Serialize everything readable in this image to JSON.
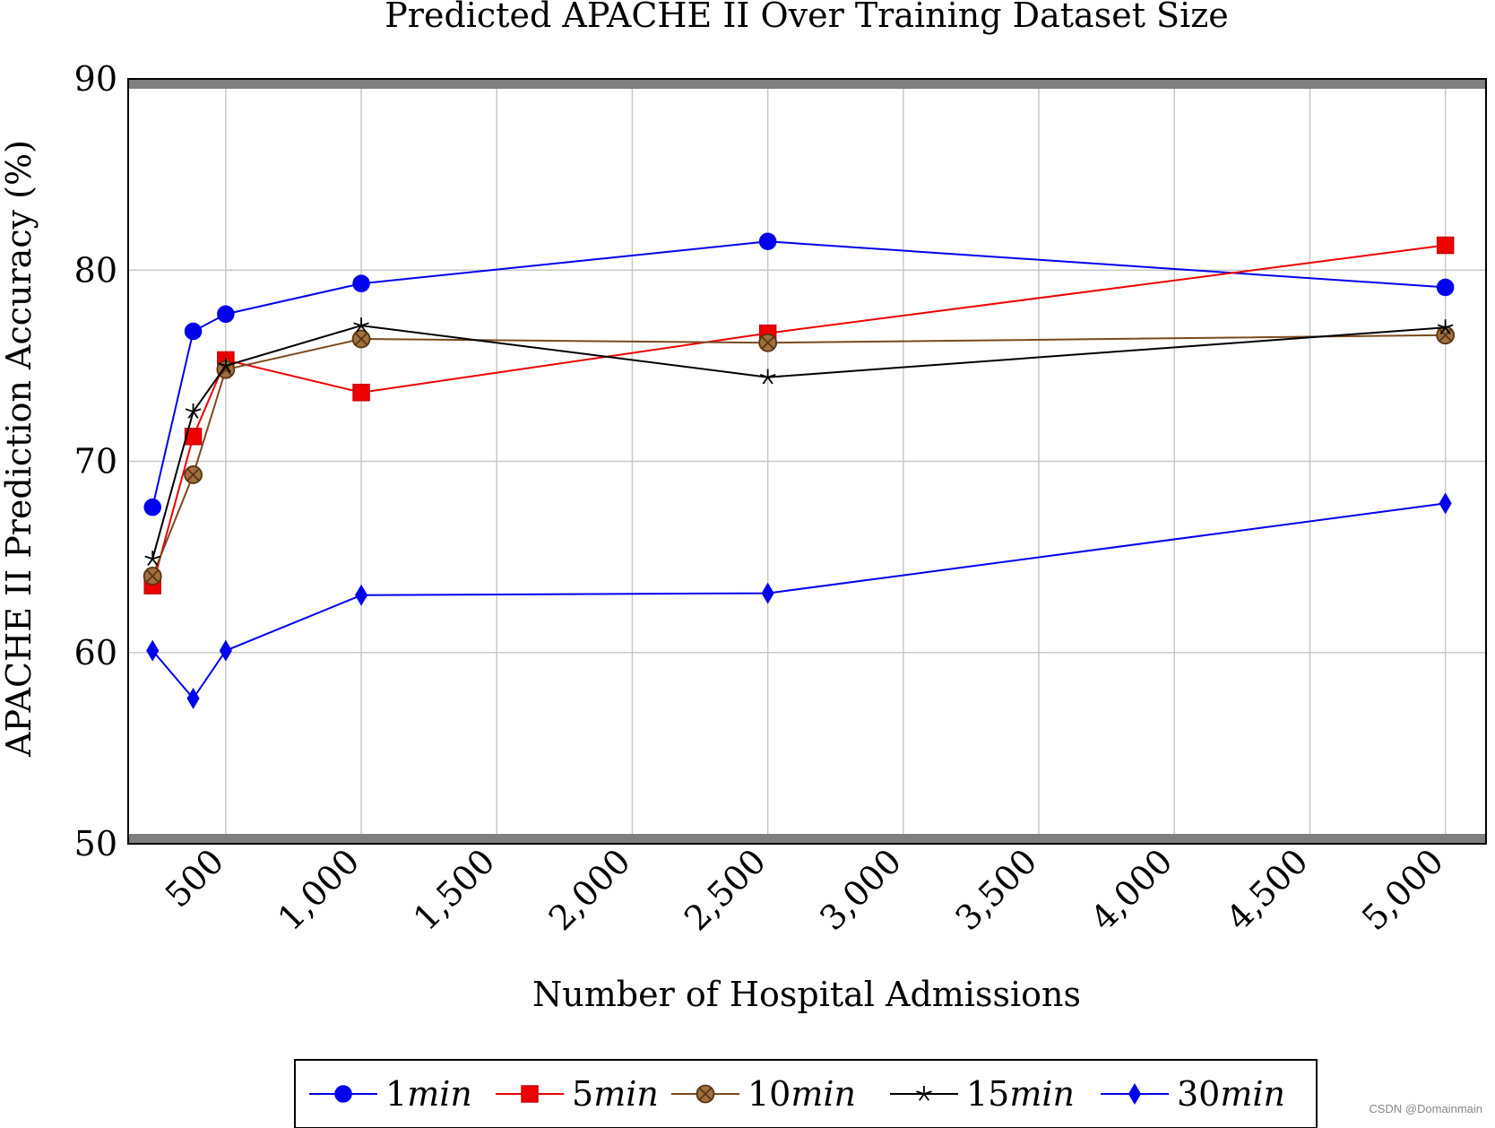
{
  "chart_data": {
    "type": "line",
    "title": "Predicted APACHE II Over Training Dataset Size",
    "xlabel": "Number of Hospital Admissions",
    "ylabel": "APACHE II Prediction Accuracy (%)",
    "xlim": [
      140,
      5150
    ],
    "ylim": [
      50,
      90
    ],
    "x_ticks": [
      500,
      1000,
      1500,
      2000,
      2500,
      3000,
      3500,
      4000,
      4500,
      5000
    ],
    "x_tick_labels": [
      "500",
      "1,000",
      "1,500",
      "2,000",
      "2,500",
      "3,000",
      "3,500",
      "4,000",
      "4,500",
      "5,000"
    ],
    "y_ticks": [
      50,
      60,
      70,
      80,
      90
    ],
    "y_tick_labels": [
      "50",
      "60",
      "70",
      "80",
      "90"
    ],
    "grid": true,
    "legend_position": "bottom-center",
    "x": [
      230,
      380,
      500,
      1000,
      2500,
      5000
    ],
    "series": [
      {
        "name": "1",
        "name_suffix": "min",
        "color": "#0000ee",
        "marker": "circle",
        "values": [
          67.6,
          76.8,
          77.7,
          79.3,
          81.5,
          79.1
        ]
      },
      {
        "name": "5",
        "name_suffix": "min",
        "color": "#ee0000",
        "marker": "square",
        "values": [
          63.5,
          71.3,
          75.3,
          73.6,
          76.7,
          81.3
        ]
      },
      {
        "name": "10",
        "name_suffix": "min",
        "color": "#7a4a1e",
        "marker": "otimes",
        "values": [
          64.0,
          69.3,
          74.8,
          76.4,
          76.2,
          76.6
        ]
      },
      {
        "name": "15",
        "name_suffix": "min",
        "color": "#000000",
        "marker": "star",
        "values": [
          64.9,
          72.6,
          75.0,
          77.1,
          74.4,
          77.0
        ]
      },
      {
        "name": "30",
        "name_suffix": "min",
        "color": "#0000ee",
        "marker": "diamond",
        "values": [
          60.1,
          57.6,
          60.1,
          63.0,
          63.1,
          67.8
        ]
      }
    ]
  },
  "watermark": "CSDN @Domainmain"
}
